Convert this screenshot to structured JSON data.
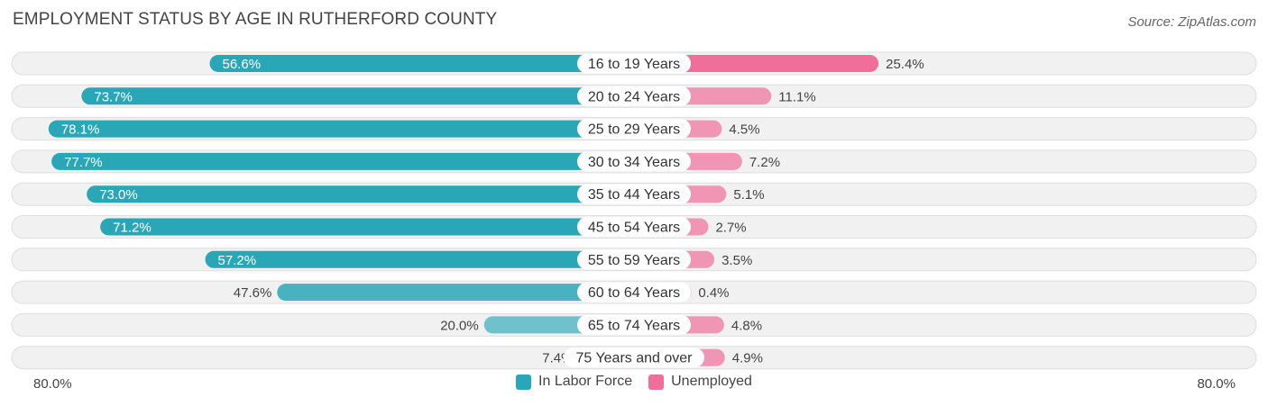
{
  "chart_data": {
    "type": "bar",
    "orientation": "horizontal-diverging",
    "title": "EMPLOYMENT STATUS BY AGE IN RUTHERFORD COUNTY",
    "source": "Source: ZipAtlas.com",
    "categories": [
      "16 to 19 Years",
      "20 to 24 Years",
      "25 to 29 Years",
      "30 to 34 Years",
      "35 to 44 Years",
      "45 to 54 Years",
      "55 to 59 Years",
      "60 to 64 Years",
      "65 to 74 Years",
      "75 Years and over"
    ],
    "series": [
      {
        "name": "In Labor Force",
        "color": "#2aa7b7",
        "values": [
          56.6,
          73.7,
          78.1,
          77.7,
          73.0,
          71.2,
          57.2,
          47.6,
          20.0,
          7.4
        ],
        "labels": [
          "56.6%",
          "73.7%",
          "78.1%",
          "77.7%",
          "73.0%",
          "71.2%",
          "57.2%",
          "47.6%",
          "20.0%",
          "7.4%"
        ]
      },
      {
        "name": "Unemployed",
        "color": "#f06f9a",
        "values": [
          25.4,
          11.1,
          4.5,
          7.2,
          5.1,
          2.7,
          3.5,
          0.4,
          4.8,
          4.9
        ],
        "labels": [
          "25.4%",
          "11.1%",
          "4.5%",
          "7.2%",
          "5.1%",
          "2.7%",
          "3.5%",
          "0.4%",
          "4.8%",
          "4.9%"
        ]
      }
    ],
    "axis_max": 80.0,
    "axis_labels": {
      "left": "80.0%",
      "right": "80.0%"
    },
    "legend_position": "bottom-center"
  }
}
